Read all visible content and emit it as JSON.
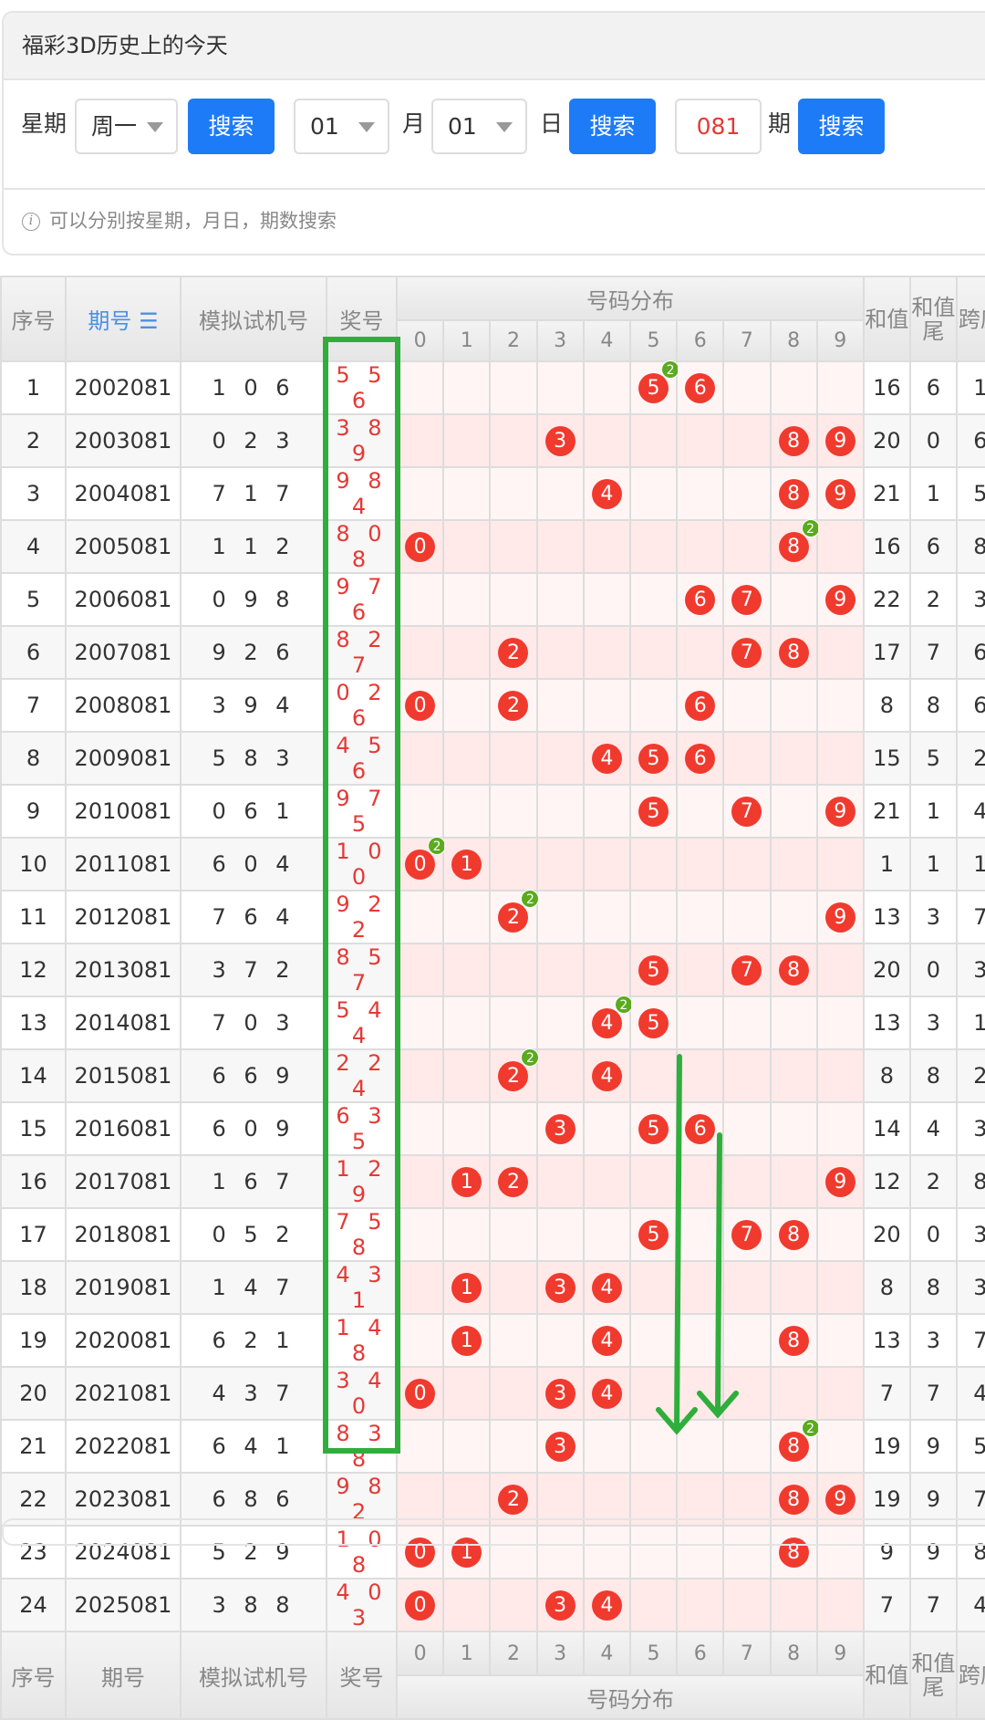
{
  "panel": {
    "title": "福彩3D历史上的今天",
    "weekday_label": "星期",
    "weekday_value": "周一",
    "search_label": "搜索",
    "month_value": "01",
    "month_label": "月",
    "day_value": "01",
    "day_label": "日",
    "issue_value": "081",
    "issue_label": "期",
    "hint": "可以分别按星期，月日，期数搜索"
  },
  "table": {
    "headers": {
      "seq": "序号",
      "issue": "期号",
      "sort_icon": "☰",
      "sim": "模拟试机号",
      "prize": "奖号",
      "dist": "号码分布",
      "sum": "和值",
      "sum_tail": "和值尾",
      "span": "跨度"
    },
    "digits": [
      "0",
      "1",
      "2",
      "3",
      "4",
      "5",
      "6",
      "7",
      "8",
      "9"
    ],
    "rows": [
      {
        "seq": "1",
        "issue": "2002081",
        "sim": "1 0 6",
        "prize": "5 5 6",
        "sum": "16",
        "tail": "6",
        "span": "1"
      },
      {
        "seq": "2",
        "issue": "2003081",
        "sim": "0 2 3",
        "prize": "3 8 9",
        "sum": "20",
        "tail": "0",
        "span": "6"
      },
      {
        "seq": "3",
        "issue": "2004081",
        "sim": "7 1 7",
        "prize": "9 8 4",
        "sum": "21",
        "tail": "1",
        "span": "5"
      },
      {
        "seq": "4",
        "issue": "2005081",
        "sim": "1 1 2",
        "prize": "8 0 8",
        "sum": "16",
        "tail": "6",
        "span": "8"
      },
      {
        "seq": "5",
        "issue": "2006081",
        "sim": "0 9 8",
        "prize": "9 7 6",
        "sum": "22",
        "tail": "2",
        "span": "3"
      },
      {
        "seq": "6",
        "issue": "2007081",
        "sim": "9 2 6",
        "prize": "8 2 7",
        "sum": "17",
        "tail": "7",
        "span": "6"
      },
      {
        "seq": "7",
        "issue": "2008081",
        "sim": "3 9 4",
        "prize": "0 2 6",
        "sum": "8",
        "tail": "8",
        "span": "6"
      },
      {
        "seq": "8",
        "issue": "2009081",
        "sim": "5 8 3",
        "prize": "4 5 6",
        "sum": "15",
        "tail": "5",
        "span": "2"
      },
      {
        "seq": "9",
        "issue": "2010081",
        "sim": "0 6 1",
        "prize": "9 7 5",
        "sum": "21",
        "tail": "1",
        "span": "4"
      },
      {
        "seq": "10",
        "issue": "2011081",
        "sim": "6 0 4",
        "prize": "1 0 0",
        "sum": "1",
        "tail": "1",
        "span": "1"
      },
      {
        "seq": "11",
        "issue": "2012081",
        "sim": "7 6 4",
        "prize": "9 2 2",
        "sum": "13",
        "tail": "3",
        "span": "7"
      },
      {
        "seq": "12",
        "issue": "2013081",
        "sim": "3 7 2",
        "prize": "8 5 7",
        "sum": "20",
        "tail": "0",
        "span": "3"
      },
      {
        "seq": "13",
        "issue": "2014081",
        "sim": "7 0 3",
        "prize": "5 4 4",
        "sum": "13",
        "tail": "3",
        "span": "1"
      },
      {
        "seq": "14",
        "issue": "2015081",
        "sim": "6 6 9",
        "prize": "2 2 4",
        "sum": "8",
        "tail": "8",
        "span": "2"
      },
      {
        "seq": "15",
        "issue": "2016081",
        "sim": "6 0 9",
        "prize": "6 3 5",
        "sum": "14",
        "tail": "4",
        "span": "3"
      },
      {
        "seq": "16",
        "issue": "2017081",
        "sim": "1 6 7",
        "prize": "1 2 9",
        "sum": "12",
        "tail": "2",
        "span": "8"
      },
      {
        "seq": "17",
        "issue": "2018081",
        "sim": "0 5 2",
        "prize": "7 5 8",
        "sum": "20",
        "tail": "0",
        "span": "3"
      },
      {
        "seq": "18",
        "issue": "2019081",
        "sim": "1 4 7",
        "prize": "4 3 1",
        "sum": "8",
        "tail": "8",
        "span": "3"
      },
      {
        "seq": "19",
        "issue": "2020081",
        "sim": "6 2 1",
        "prize": "1 4 8",
        "sum": "13",
        "tail": "3",
        "span": "7"
      },
      {
        "seq": "20",
        "issue": "2021081",
        "sim": "4 3 7",
        "prize": "3 4 0",
        "sum": "7",
        "tail": "7",
        "span": "4"
      },
      {
        "seq": "21",
        "issue": "2022081",
        "sim": "6 4 1",
        "prize": "8 3 8",
        "sum": "19",
        "tail": "9",
        "span": "5"
      },
      {
        "seq": "22",
        "issue": "2023081",
        "sim": "6 8 6",
        "prize": "9 8 2",
        "sum": "19",
        "tail": "9",
        "span": "7"
      },
      {
        "seq": "23",
        "issue": "2024081",
        "sim": "5 2 9",
        "prize": "1 0 8",
        "sum": "9",
        "tail": "9",
        "span": "8"
      },
      {
        "seq": "24",
        "issue": "2025081",
        "sim": "3 8 8",
        "prize": "4 0 3",
        "sum": "7",
        "tail": "7",
        "span": "4"
      }
    ]
  },
  "colors": {
    "accent": "#1e7bf7",
    "ball": "#f03a2e",
    "badge": "#5aab1e",
    "annotation": "#2fae3c",
    "prize_text": "#e53935"
  }
}
